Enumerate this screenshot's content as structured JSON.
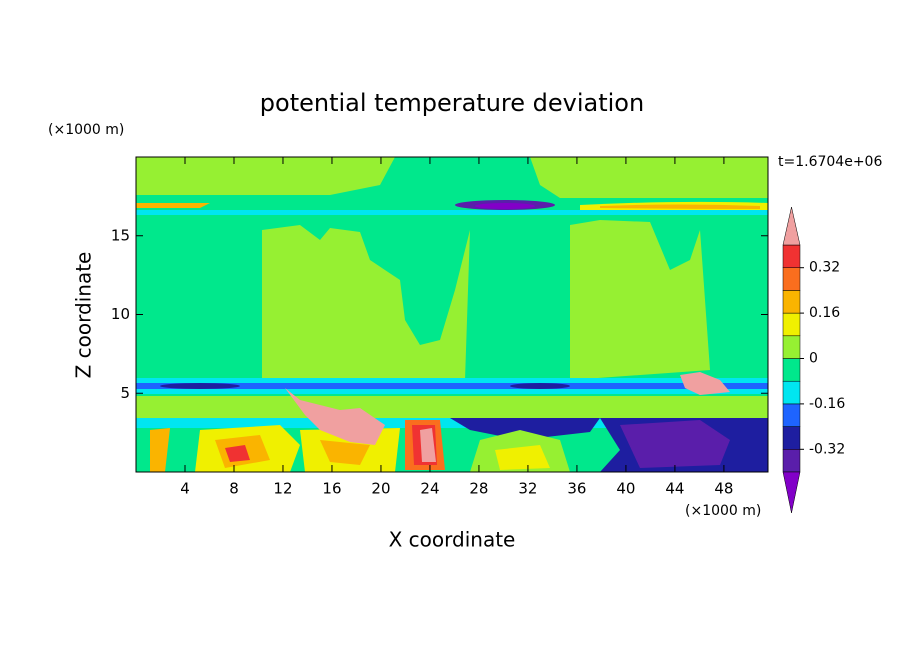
{
  "chart_data": {
    "type": "contour",
    "title": "potential temperature deviation",
    "xlabel": "X coordinate",
    "ylabel": "Z coordinate",
    "x_unit": "(×1000 m)",
    "y_unit": "(×1000 m)",
    "time_label": "t=1.6704e+06",
    "xlim": [
      0,
      51.6
    ],
    "xticks": [
      4,
      8,
      12,
      16,
      20,
      24,
      28,
      32,
      36,
      40,
      44,
      48
    ],
    "ylim": [
      0,
      20
    ],
    "yticks": [
      5,
      10,
      15
    ],
    "colorbar": {
      "levels": [
        -0.4,
        -0.32,
        -0.24,
        -0.16,
        -0.08,
        0,
        0.08,
        0.16,
        0.24,
        0.32,
        0.4
      ],
      "colors": [
        "#8200c8",
        "#5a1eaa",
        "#1e1ea0",
        "#1e64ff",
        "#00e6f0",
        "#00e88c",
        "#96f032",
        "#f0f000",
        "#fab400",
        "#fa6e1e",
        "#f03232",
        "#f0a0a0"
      ],
      "ticks": [
        -0.32,
        -0.16,
        0,
        0.16,
        0.32
      ]
    }
  }
}
